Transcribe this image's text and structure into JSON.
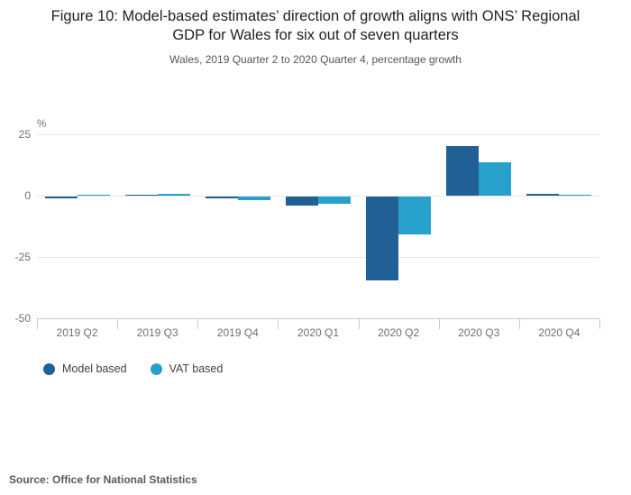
{
  "header": {
    "title": "Figure 10: Model-based estimates’ direction of growth aligns with ONS’ Regional GDP for Wales for six out of seven quarters",
    "subtitle": "Wales, 2019 Quarter 2 to 2020 Quarter 4, percentage growth"
  },
  "chart_data": {
    "type": "bar",
    "title": "Figure 10: Model-based estimates’ direction of growth aligns with ONS’ Regional GDP for Wales for six out of seven quarters",
    "subtitle": "Wales, 2019 Quarter 2 to 2020 Quarter 4, percentage growth",
    "unit_label": "%",
    "categories": [
      "2019 Q2",
      "2019 Q3",
      "2019 Q4",
      "2020 Q1",
      "2020 Q2",
      "2020 Q3",
      "2020 Q4"
    ],
    "series": [
      {
        "name": "Model based",
        "color": "#206095",
        "values": [
          -0.5,
          0.2,
          -0.4,
          -3.7,
          -34.2,
          20.1,
          0.7
        ]
      },
      {
        "name": "VAT based",
        "color": "#27A0CC",
        "values": [
          0.4,
          0.6,
          -1.3,
          -3.0,
          -15.4,
          13.6,
          0.5
        ]
      }
    ],
    "ylim": [
      -50,
      25
    ],
    "yticks": [
      25,
      0,
      -25,
      -50
    ],
    "grid": true,
    "legend_position": "bottom"
  },
  "legend": {
    "items": [
      {
        "label": "Model based",
        "color": "#206095"
      },
      {
        "label": "VAT based",
        "color": "#27A0CC"
      }
    ]
  },
  "footer": {
    "source": "Source: Office for National Statistics"
  }
}
